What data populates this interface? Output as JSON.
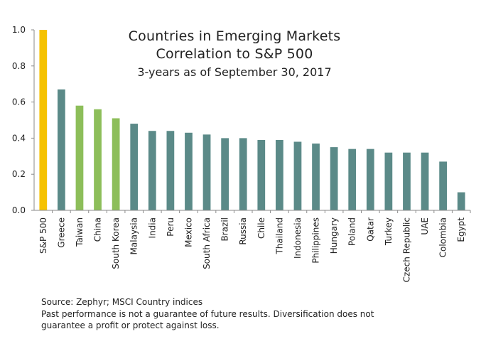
{
  "chart_data": {
    "type": "bar",
    "title": "Countries in Emerging Markets",
    "subtitle": "Correlation to S&P 500",
    "subtitle2": "3-years as of September 30, 2017",
    "categories": [
      "S&P 500",
      "Greece",
      "Taiwan",
      "China",
      "South Korea",
      "Malaysia",
      "India",
      "Peru",
      "Mexico",
      "South Africa",
      "Brazil",
      "Russia",
      "Chile",
      "Thailand",
      "Indonesia",
      "Philippines",
      "Hungary",
      "Poland",
      "Qatar",
      "Turkey",
      "Czech Republic",
      "UAE",
      "Colombia",
      "Egypt"
    ],
    "values": [
      1.0,
      0.67,
      0.58,
      0.56,
      0.51,
      0.48,
      0.44,
      0.44,
      0.43,
      0.42,
      0.4,
      0.4,
      0.39,
      0.39,
      0.38,
      0.37,
      0.35,
      0.34,
      0.34,
      0.32,
      0.32,
      0.32,
      0.27,
      0.1
    ],
    "bar_colors": [
      "#F5C200",
      "#5B8A88",
      "#8DBE5A",
      "#8DBE5A",
      "#8DBE5A",
      "#5B8A88",
      "#5B8A88",
      "#5B8A88",
      "#5B8A88",
      "#5B8A88",
      "#5B8A88",
      "#5B8A88",
      "#5B8A88",
      "#5B8A88",
      "#5B8A88",
      "#5B8A88",
      "#5B8A88",
      "#5B8A88",
      "#5B8A88",
      "#5B8A88",
      "#5B8A88",
      "#5B8A88",
      "#5B8A88",
      "#5B8A88"
    ],
    "ylim": [
      0,
      1.0
    ],
    "yticks": [
      "0.0",
      "0.2",
      "0.4",
      "0.6",
      "0.8",
      "1.0"
    ],
    "xlabel": "",
    "ylabel": "",
    "grid": false
  },
  "footnotes": {
    "source": "Source: Zephyr; MSCI Country indices",
    "disclaimer": "Past performance is not a guarantee of future results. Diversification does not guarantee a profit or protect against loss."
  }
}
